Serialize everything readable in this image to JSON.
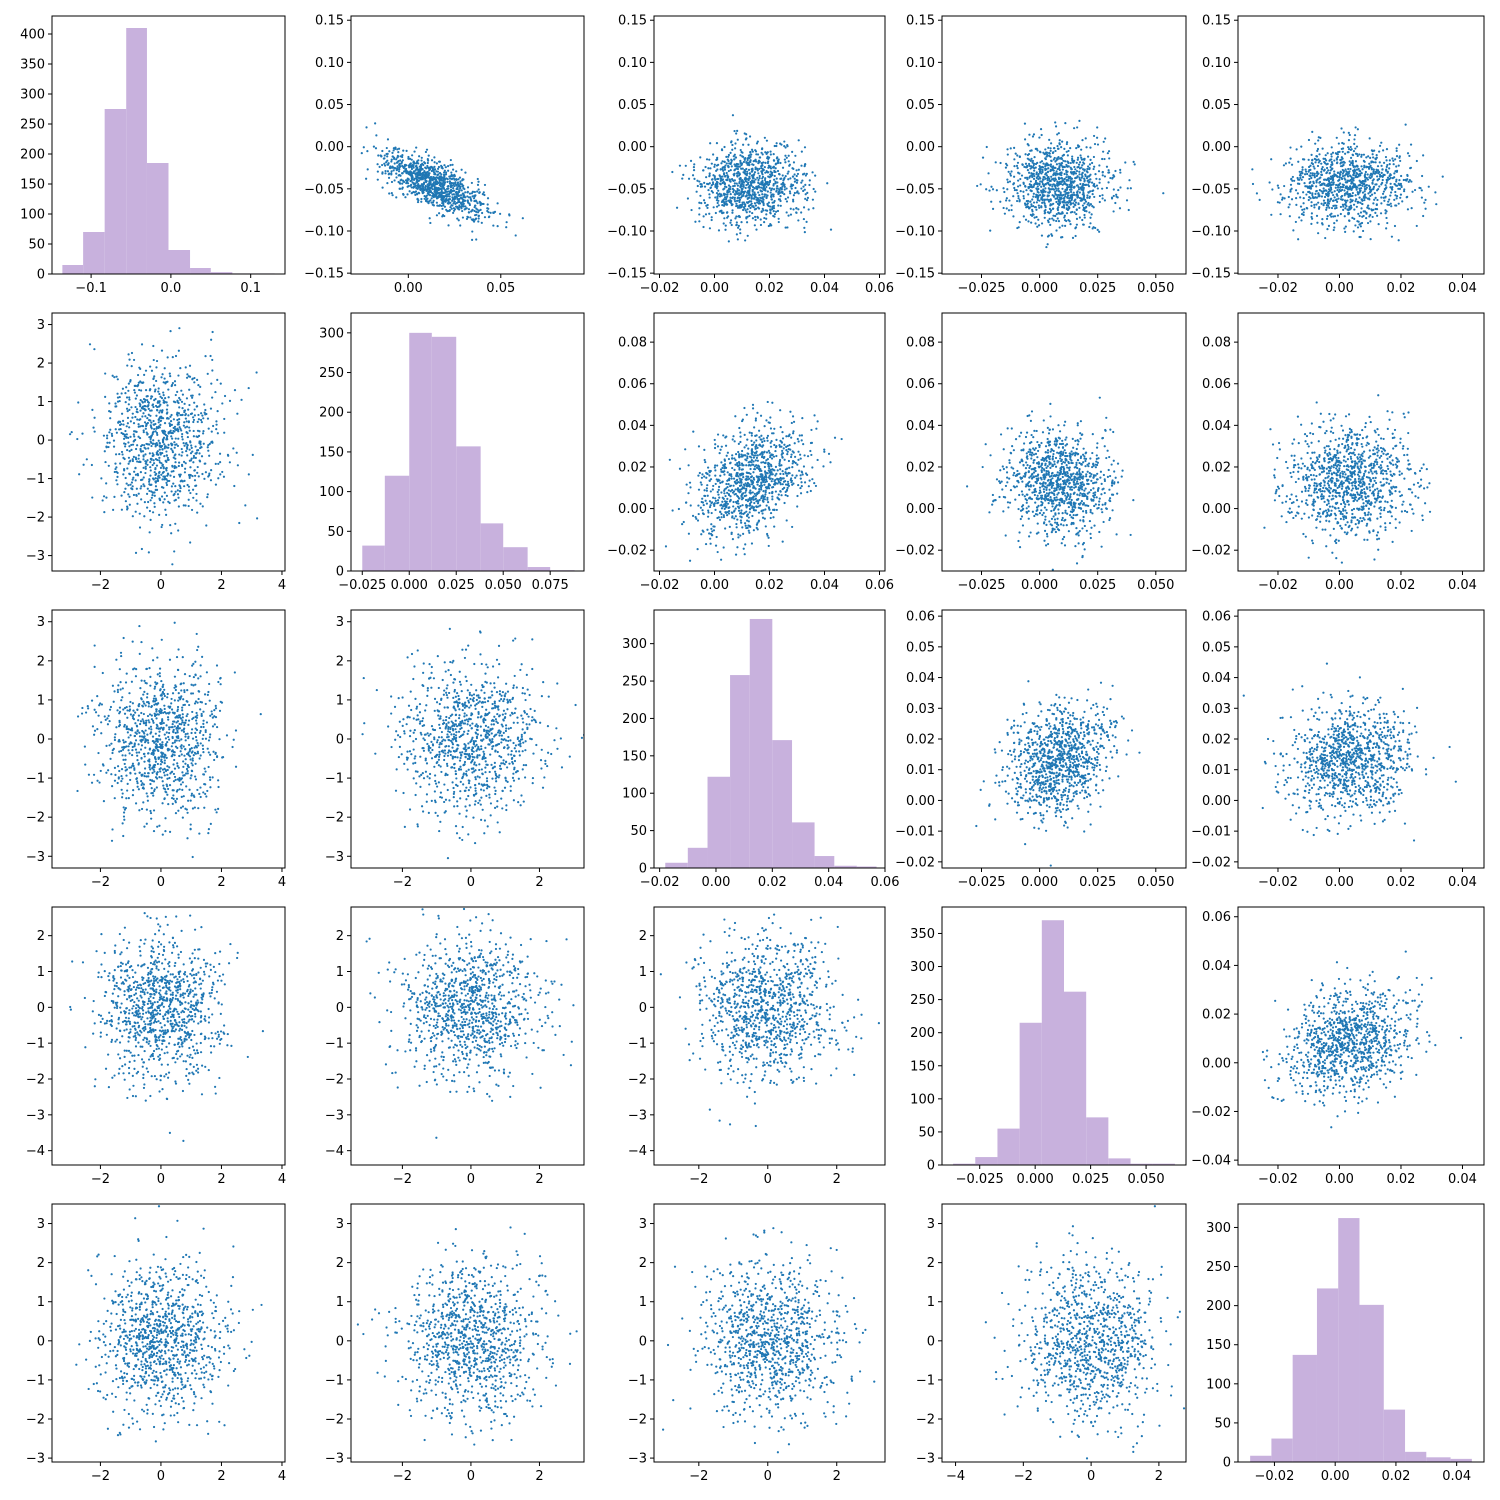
{
  "colors": {
    "scatter": "#1f77b4",
    "hist": "#c8b1dd",
    "axes": "#000000",
    "background": "#ffffff"
  },
  "chart_data": [
    {
      "type": "bar",
      "grid": false,
      "title": "",
      "xlabel": "",
      "ylabel": "",
      "bins": [
        [
          -0.136,
          -0.11,
          15
        ],
        [
          -0.11,
          -0.083,
          70
        ],
        [
          -0.083,
          -0.056,
          275
        ],
        [
          -0.056,
          -0.03,
          410
        ],
        [
          -0.03,
          -0.003,
          185
        ],
        [
          -0.003,
          0.024,
          40
        ],
        [
          0.024,
          0.05,
          10
        ],
        [
          0.05,
          0.077,
          3
        ],
        [
          0.077,
          0.104,
          1
        ],
        [
          0.104,
          0.13,
          1
        ]
      ],
      "xlim": [
        -0.149,
        0.143
      ],
      "ylim": [
        0,
        430
      ],
      "xticks": [
        -0.1,
        0.0,
        0.1
      ],
      "yticks": [
        0,
        50,
        100,
        150,
        200,
        250,
        300,
        350,
        400
      ]
    },
    {
      "type": "scatter",
      "grid": false,
      "title": "",
      "xlabel": "",
      "ylabel": "",
      "xmean": 0.014,
      "xsd": 0.014,
      "ymean": -0.045,
      "ysd": 0.02,
      "corr": -0.7,
      "n": 1000,
      "xlim": [
        -0.031,
        0.095
      ],
      "ylim": [
        -0.151,
        0.155
      ],
      "xticks": [
        0.0,
        0.05
      ],
      "yticks": [
        -0.15,
        -0.1,
        -0.05,
        0.0,
        0.05,
        0.1,
        0.15
      ]
    },
    {
      "type": "scatter",
      "grid": false,
      "title": "",
      "xlabel": "",
      "ylabel": "",
      "xmean": 0.013,
      "xsd": 0.01,
      "ymean": -0.045,
      "ysd": 0.024,
      "corr": 0,
      "n": 1000,
      "xlim": [
        -0.022,
        0.062
      ],
      "ylim": [
        -0.151,
        0.155
      ],
      "xticks": [
        -0.02,
        0.0,
        0.02,
        0.04,
        0.06
      ],
      "yticks": [
        -0.15,
        -0.1,
        -0.05,
        0.0,
        0.05,
        0.1,
        0.15
      ]
    },
    {
      "type": "scatter",
      "grid": false,
      "title": "",
      "xlabel": "",
      "ylabel": "",
      "xmean": 0.008,
      "xsd": 0.011,
      "ymean": -0.045,
      "ysd": 0.024,
      "corr": 0,
      "n": 1000,
      "xlim": [
        -0.042,
        0.063
      ],
      "ylim": [
        -0.151,
        0.155
      ],
      "xticks": [
        -0.025,
        0.0,
        0.025,
        0.05
      ],
      "yticks": [
        -0.15,
        -0.1,
        -0.05,
        0.0,
        0.05,
        0.1,
        0.15
      ]
    },
    {
      "type": "scatter",
      "grid": false,
      "title": "",
      "xlabel": "",
      "ylabel": "",
      "xmean": 0.003,
      "xsd": 0.01,
      "ymean": -0.045,
      "ysd": 0.024,
      "corr": 0,
      "n": 1000,
      "xlim": [
        -0.033,
        0.047
      ],
      "ylim": [
        -0.151,
        0.155
      ],
      "xticks": [
        -0.02,
        0.0,
        0.02,
        0.04
      ],
      "yticks": [
        -0.15,
        -0.1,
        -0.05,
        0.0,
        0.05,
        0.1,
        0.15
      ]
    },
    {
      "type": "scatter",
      "grid": false,
      "title": "",
      "xlabel": "",
      "ylabel": "",
      "xmean": 0,
      "xsd": 1,
      "ymean": 0,
      "ysd": 1,
      "corr": 0,
      "n": 1000,
      "xlim": [
        -3.6,
        4.1
      ],
      "ylim": [
        -3.4,
        3.3
      ],
      "xticks": [
        -2,
        0,
        2,
        4
      ],
      "yticks": [
        -3,
        -2,
        -1,
        0,
        1,
        2,
        3
      ]
    },
    {
      "type": "bar",
      "grid": false,
      "title": "",
      "xlabel": "",
      "ylabel": "",
      "bins": [
        [
          -0.025,
          -0.013,
          32
        ],
        [
          -0.013,
          0.0,
          120
        ],
        [
          0.0,
          0.012,
          300
        ],
        [
          0.012,
          0.025,
          295
        ],
        [
          0.025,
          0.038,
          157
        ],
        [
          0.038,
          0.05,
          60
        ],
        [
          0.05,
          0.063,
          30
        ],
        [
          0.063,
          0.075,
          5
        ],
        [
          0.075,
          0.088,
          1
        ]
      ],
      "xlim": [
        -0.031,
        0.093
      ],
      "ylim": [
        0,
        325
      ],
      "xticks": [
        -0.025,
        0.0,
        0.025,
        0.05,
        0.075
      ],
      "yticks": [
        0,
        50,
        100,
        150,
        200,
        250,
        300
      ]
    },
    {
      "type": "scatter",
      "grid": false,
      "title": "",
      "xlabel": "",
      "ylabel": "",
      "xmean": 0.013,
      "xsd": 0.01,
      "ymean": 0.013,
      "ysd": 0.013,
      "corr": 0.35,
      "n": 1000,
      "xlim": [
        -0.022,
        0.062
      ],
      "ylim": [
        -0.03,
        0.094
      ],
      "xticks": [
        -0.02,
        0.0,
        0.02,
        0.04,
        0.06
      ],
      "yticks": [
        -0.02,
        0.0,
        0.02,
        0.04,
        0.06,
        0.08
      ]
    },
    {
      "type": "scatter",
      "grid": false,
      "title": "",
      "xlabel": "",
      "ylabel": "",
      "xmean": 0.008,
      "xsd": 0.011,
      "ymean": 0.013,
      "ysd": 0.013,
      "corr": 0,
      "n": 1000,
      "xlim": [
        -0.042,
        0.063
      ],
      "ylim": [
        -0.03,
        0.094
      ],
      "xticks": [
        -0.025,
        0.0,
        0.025,
        0.05
      ],
      "yticks": [
        -0.02,
        0.0,
        0.02,
        0.04,
        0.06,
        0.08
      ]
    },
    {
      "type": "scatter",
      "grid": false,
      "title": "",
      "xlabel": "",
      "ylabel": "",
      "xmean": 0.003,
      "xsd": 0.01,
      "ymean": 0.013,
      "ysd": 0.013,
      "corr": 0,
      "n": 1000,
      "xlim": [
        -0.033,
        0.047
      ],
      "ylim": [
        -0.03,
        0.094
      ],
      "xticks": [
        -0.02,
        0.0,
        0.02,
        0.04
      ],
      "yticks": [
        -0.02,
        0.0,
        0.02,
        0.04,
        0.06,
        0.08
      ]
    },
    {
      "type": "scatter",
      "grid": false,
      "title": "",
      "xlabel": "",
      "ylabel": "",
      "xmean": 0,
      "xsd": 1,
      "ymean": 0,
      "ysd": 1,
      "corr": 0,
      "n": 1000,
      "xlim": [
        -3.6,
        4.1
      ],
      "ylim": [
        -3.3,
        3.3
      ],
      "xticks": [
        -2,
        0,
        2,
        4
      ],
      "yticks": [
        -3,
        -2,
        -1,
        0,
        1,
        2,
        3
      ]
    },
    {
      "type": "scatter",
      "grid": false,
      "title": "",
      "xlabel": "",
      "ylabel": "",
      "xmean": 0,
      "xsd": 1,
      "ymean": 0,
      "ysd": 1,
      "corr": 0,
      "n": 1000,
      "xlim": [
        -3.5,
        3.3
      ],
      "ylim": [
        -3.3,
        3.3
      ],
      "xticks": [
        -2,
        0,
        2
      ],
      "yticks": [
        -3,
        -2,
        -1,
        0,
        1,
        2,
        3
      ]
    },
    {
      "type": "bar",
      "grid": false,
      "title": "",
      "xlabel": "",
      "ylabel": "",
      "bins": [
        [
          -0.018,
          -0.01,
          7
        ],
        [
          -0.01,
          -0.003,
          27
        ],
        [
          -0.003,
          0.005,
          122
        ],
        [
          0.005,
          0.012,
          258
        ],
        [
          0.012,
          0.02,
          333
        ],
        [
          0.02,
          0.027,
          171
        ],
        [
          0.027,
          0.035,
          61
        ],
        [
          0.035,
          0.042,
          16
        ],
        [
          0.042,
          0.05,
          3
        ],
        [
          0.05,
          0.057,
          2
        ]
      ],
      "xlim": [
        -0.022,
        0.06
      ],
      "ylim": [
        0,
        345
      ],
      "xticks": [
        -0.02,
        0.0,
        0.02,
        0.04,
        0.06
      ],
      "yticks": [
        0,
        50,
        100,
        150,
        200,
        250,
        300
      ]
    },
    {
      "type": "scatter",
      "grid": false,
      "title": "",
      "xlabel": "",
      "ylabel": "",
      "xmean": 0.008,
      "xsd": 0.011,
      "ymean": 0.013,
      "ysd": 0.009,
      "corr": 0.25,
      "n": 1000,
      "xlim": [
        -0.042,
        0.063
      ],
      "ylim": [
        -0.022,
        0.062
      ],
      "xticks": [
        -0.025,
        0.0,
        0.025,
        0.05
      ],
      "yticks": [
        -0.02,
        -0.01,
        0.0,
        0.01,
        0.02,
        0.03,
        0.04,
        0.05,
        0.06
      ]
    },
    {
      "type": "scatter",
      "grid": false,
      "title": "",
      "xlabel": "",
      "ylabel": "",
      "xmean": 0.003,
      "xsd": 0.01,
      "ymean": 0.013,
      "ysd": 0.009,
      "corr": 0.1,
      "n": 1000,
      "xlim": [
        -0.033,
        0.047
      ],
      "ylim": [
        -0.022,
        0.062
      ],
      "xticks": [
        -0.02,
        0.0,
        0.02,
        0.04
      ],
      "yticks": [
        -0.02,
        -0.01,
        0.0,
        0.01,
        0.02,
        0.03,
        0.04,
        0.05,
        0.06
      ]
    },
    {
      "type": "scatter",
      "grid": false,
      "title": "",
      "xlabel": "",
      "ylabel": "",
      "xmean": 0,
      "xsd": 1,
      "ymean": 0,
      "ysd": 1,
      "corr": 0,
      "n": 1000,
      "xlim": [
        -3.6,
        4.1
      ],
      "ylim": [
        -4.4,
        2.8
      ],
      "xticks": [
        -2,
        0,
        2,
        4
      ],
      "yticks": [
        -4,
        -3,
        -2,
        -1,
        0,
        1,
        2
      ]
    },
    {
      "type": "scatter",
      "grid": false,
      "title": "",
      "xlabel": "",
      "ylabel": "",
      "xmean": 0,
      "xsd": 1,
      "ymean": 0,
      "ysd": 1,
      "corr": 0,
      "n": 1000,
      "xlim": [
        -3.5,
        3.3
      ],
      "ylim": [
        -4.4,
        2.8
      ],
      "xticks": [
        -2,
        0,
        2
      ],
      "yticks": [
        -4,
        -3,
        -2,
        -1,
        0,
        1,
        2
      ]
    },
    {
      "type": "scatter",
      "grid": false,
      "title": "",
      "xlabel": "",
      "ylabel": "",
      "xmean": 0,
      "xsd": 1,
      "ymean": 0,
      "ysd": 1,
      "corr": 0,
      "n": 1000,
      "xlim": [
        -3.3,
        3.4
      ],
      "ylim": [
        -4.4,
        2.8
      ],
      "xticks": [
        -2,
        0,
        2
      ],
      "yticks": [
        -4,
        -3,
        -2,
        -1,
        0,
        1,
        2
      ]
    },
    {
      "type": "bar",
      "grid": false,
      "title": "",
      "xlabel": "",
      "ylabel": "",
      "bins": [
        [
          -0.037,
          -0.027,
          2
        ],
        [
          -0.027,
          -0.017,
          12
        ],
        [
          -0.017,
          -0.007,
          55
        ],
        [
          -0.007,
          0.003,
          215
        ],
        [
          0.003,
          0.013,
          370
        ],
        [
          0.013,
          0.023,
          262
        ],
        [
          0.023,
          0.033,
          72
        ],
        [
          0.033,
          0.043,
          10
        ],
        [
          0.043,
          0.053,
          2
        ],
        [
          0.053,
          0.063,
          2
        ]
      ],
      "xlim": [
        -0.042,
        0.068
      ],
      "ylim": [
        0,
        390
      ],
      "xticks": [
        -0.025,
        0.0,
        0.025,
        0.05
      ],
      "yticks": [
        0,
        50,
        100,
        150,
        200,
        250,
        300,
        350
      ]
    },
    {
      "type": "scatter",
      "grid": false,
      "title": "",
      "xlabel": "",
      "ylabel": "",
      "xmean": 0.003,
      "xsd": 0.01,
      "ymean": 0.008,
      "ysd": 0.011,
      "corr": 0.2,
      "n": 1000,
      "xlim": [
        -0.033,
        0.047
      ],
      "ylim": [
        -0.042,
        0.064
      ],
      "xticks": [
        -0.02,
        0.0,
        0.02,
        0.04
      ],
      "yticks": [
        -0.04,
        -0.02,
        0.0,
        0.02,
        0.04,
        0.06
      ]
    },
    {
      "type": "scatter",
      "grid": false,
      "title": "",
      "xlabel": "",
      "ylabel": "",
      "xmean": 0,
      "xsd": 1,
      "ymean": 0,
      "ysd": 1,
      "corr": 0,
      "n": 1000,
      "xlim": [
        -3.6,
        4.1
      ],
      "ylim": [
        -3.1,
        3.5
      ],
      "xticks": [
        -2,
        0,
        2,
        4
      ],
      "yticks": [
        -3,
        -2,
        -1,
        0,
        1,
        2,
        3
      ]
    },
    {
      "type": "scatter",
      "grid": false,
      "title": "",
      "xlabel": "",
      "ylabel": "",
      "xmean": 0,
      "xsd": 1,
      "ymean": 0,
      "ysd": 1,
      "corr": 0,
      "n": 1000,
      "xlim": [
        -3.5,
        3.3
      ],
      "ylim": [
        -3.1,
        3.5
      ],
      "xticks": [
        -2,
        0,
        2
      ],
      "yticks": [
        -3,
        -2,
        -1,
        0,
        1,
        2,
        3
      ]
    },
    {
      "type": "scatter",
      "grid": false,
      "title": "",
      "xlabel": "",
      "ylabel": "",
      "xmean": 0,
      "xsd": 1,
      "ymean": 0,
      "ysd": 1,
      "corr": 0,
      "n": 1000,
      "xlim": [
        -3.3,
        3.4
      ],
      "ylim": [
        -3.1,
        3.5
      ],
      "xticks": [
        -2,
        0,
        2
      ],
      "yticks": [
        -3,
        -2,
        -1,
        0,
        1,
        2,
        3
      ]
    },
    {
      "type": "scatter",
      "grid": false,
      "title": "",
      "xlabel": "",
      "ylabel": "",
      "xmean": 0,
      "xsd": 1,
      "ymean": 0,
      "ysd": 1,
      "corr": 0,
      "n": 1000,
      "xlim": [
        -4.4,
        2.8
      ],
      "ylim": [
        -3.1,
        3.5
      ],
      "xticks": [
        -4,
        -2,
        0,
        2
      ],
      "yticks": [
        -3,
        -2,
        -1,
        0,
        1,
        2,
        3
      ]
    },
    {
      "type": "bar",
      "grid": false,
      "title": "",
      "xlabel": "",
      "ylabel": "",
      "bins": [
        [
          -0.028,
          -0.021,
          8
        ],
        [
          -0.021,
          -0.014,
          30
        ],
        [
          -0.014,
          -0.006,
          137
        ],
        [
          -0.006,
          0.001,
          222
        ],
        [
          0.001,
          0.008,
          312
        ],
        [
          0.008,
          0.016,
          201
        ],
        [
          0.016,
          0.023,
          67
        ],
        [
          0.023,
          0.03,
          13
        ],
        [
          0.03,
          0.038,
          6
        ],
        [
          0.038,
          0.045,
          4
        ]
      ],
      "xlim": [
        -0.032,
        0.049
      ],
      "ylim": [
        0,
        330
      ],
      "xticks": [
        -0.02,
        0.0,
        0.02,
        0.04
      ],
      "yticks": [
        0,
        50,
        100,
        150,
        200,
        250,
        300
      ]
    }
  ]
}
